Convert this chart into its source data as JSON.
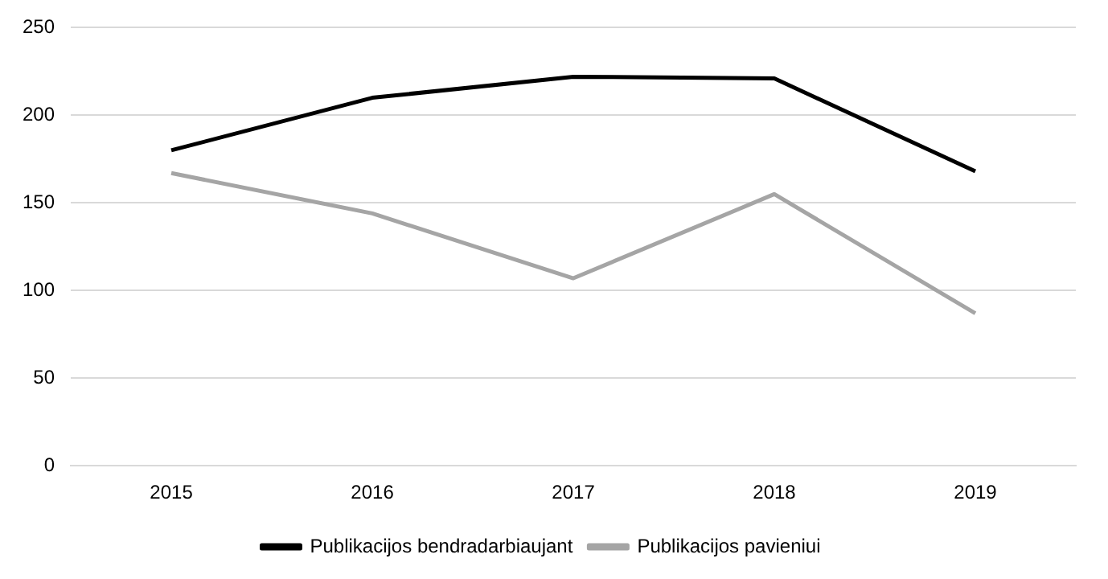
{
  "chart_data": {
    "type": "line",
    "categories": [
      "2015",
      "2016",
      "2017",
      "2018",
      "2019"
    ],
    "series": [
      {
        "name": "Publikacijos bendradarbiaujant",
        "color": "#000000",
        "values": [
          180,
          210,
          222,
          221,
          168
        ]
      },
      {
        "name": "Publikacijos pavieniui",
        "color": "#a5a5a5",
        "values": [
          167,
          144,
          107,
          155,
          87
        ]
      }
    ],
    "ylim": [
      0,
      250
    ],
    "yticks": [
      0,
      50,
      100,
      150,
      200,
      250
    ],
    "grid": "y",
    "legend": "bottom",
    "marker": "none",
    "line_style": "solid"
  }
}
